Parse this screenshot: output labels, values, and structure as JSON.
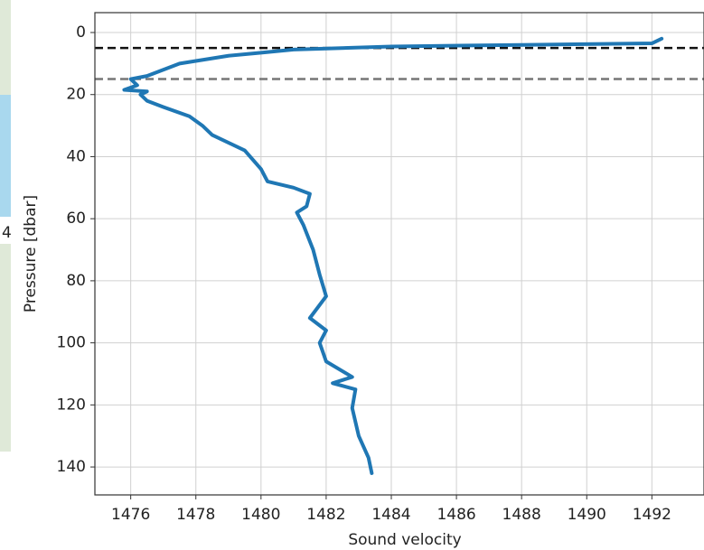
{
  "chart_data": {
    "type": "line",
    "x_label": "Sound velocity",
    "y_label": "Pressure [dbar]",
    "xlim": [
      1474.9,
      1493.6
    ],
    "ylim": [
      -6.4,
      149
    ],
    "y_inverted": true,
    "xticks": [
      1476,
      1478,
      1480,
      1482,
      1484,
      1486,
      1488,
      1490,
      1492
    ],
    "yticks": [
      0,
      20,
      40,
      60,
      80,
      100,
      120,
      140
    ],
    "grid": true,
    "hlines": [
      {
        "value": 5,
        "color": "#111111"
      },
      {
        "value": 15,
        "color": "#777777"
      }
    ],
    "series": [
      {
        "color": "#1f77b4",
        "x": [
          1492.3,
          1492.0,
          1488,
          1484,
          1481,
          1480,
          1479,
          1477.5,
          1477,
          1476.5,
          1476,
          1476.2,
          1475.8,
          1476.5,
          1476.3,
          1476.5,
          1477,
          1477.8,
          1478.2,
          1478.5,
          1479.5,
          1480,
          1480.2,
          1481,
          1481.5,
          1481.4,
          1481.1,
          1481.3,
          1481.6,
          1481.8,
          1482,
          1481.5,
          1482,
          1481.8,
          1482,
          1482.8,
          1482.2,
          1482.9,
          1482.8,
          1483,
          1483.3,
          1483.4
        ],
        "values": [
          2,
          3.5,
          4,
          4.5,
          5.5,
          6.5,
          7.5,
          10,
          12,
          14,
          15,
          17,
          18.5,
          19,
          20,
          22,
          24,
          27,
          30,
          33,
          38,
          44,
          48,
          50,
          52,
          56,
          58,
          62,
          70,
          78,
          85,
          92,
          96,
          100,
          106,
          111,
          113,
          115,
          121,
          130,
          137,
          142
        ]
      }
    ]
  },
  "side_panel": {
    "label": "4"
  }
}
